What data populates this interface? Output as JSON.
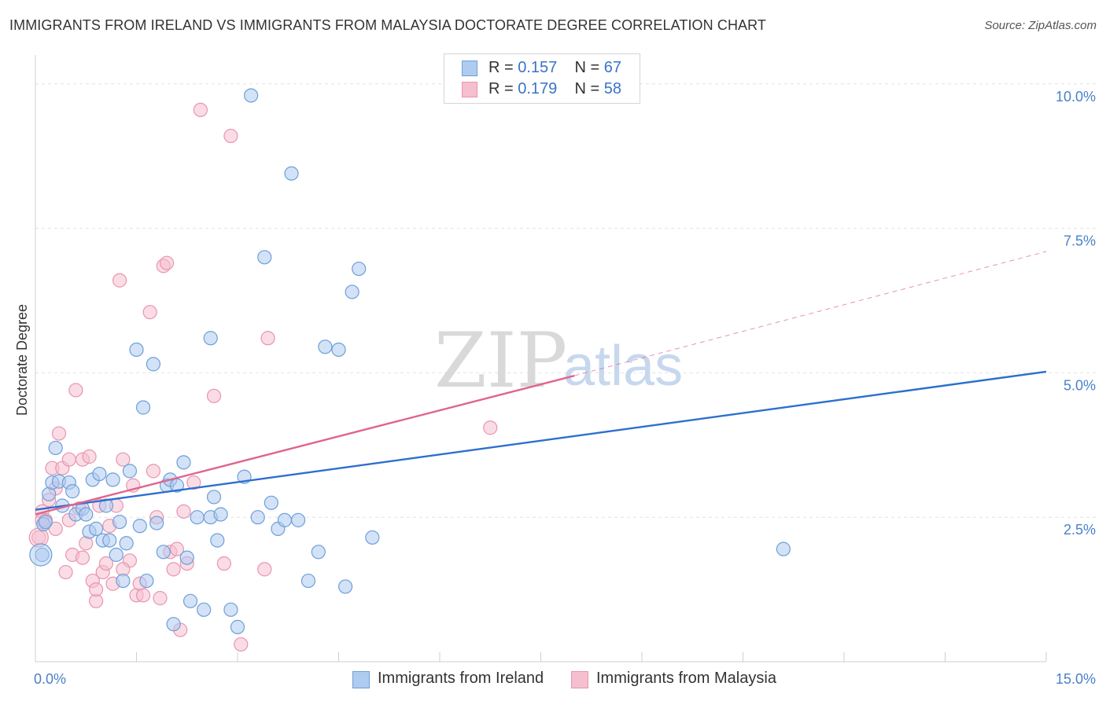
{
  "title": "IMMIGRANTS FROM IRELAND VS IMMIGRANTS FROM MALAYSIA DOCTORATE DEGREE CORRELATION CHART",
  "source": "Source: ZipAtlas.com",
  "watermark": {
    "zip": "ZIP",
    "atlas": "atlas"
  },
  "colors": {
    "ireland_fill": "#aecbf0",
    "ireland_stroke": "#6d9fd8",
    "ireland_line": "#2d6fcc",
    "malaysia_fill": "#f5bfd0",
    "malaysia_stroke": "#e994b0",
    "malaysia_line": "#e0648f",
    "grid": "#e2e2e2",
    "tick_text": "#4a80c8"
  },
  "legend": {
    "rows": [
      {
        "r_label": "R = ",
        "r_value": "0.157",
        "n_label": "N = ",
        "n_value": "67"
      },
      {
        "r_label": "R = ",
        "r_value": "0.179",
        "n_label": "N = ",
        "n_value": "58"
      }
    ]
  },
  "bottom_legend": [
    "Immigrants from Ireland",
    "Immigrants from Malaysia"
  ],
  "chart_data": {
    "type": "scatter",
    "title": "IMMIGRANTS FROM IRELAND VS IMMIGRANTS FROM MALAYSIA DOCTORATE DEGREE CORRELATION CHART",
    "xlabel": "",
    "ylabel": "Doctorate Degree",
    "xlim": [
      0,
      15
    ],
    "ylim": [
      0,
      10.5
    ],
    "x_tick_labels": [
      "0.0%",
      "15.0%"
    ],
    "y_ticks": [
      2.5,
      5.0,
      7.5,
      10.0
    ],
    "y_tick_labels": [
      "2.5%",
      "5.0%",
      "7.5%",
      "10.0%"
    ],
    "grid": true,
    "series": [
      {
        "name": "Immigrants from Ireland",
        "r": 0.157,
        "n": 67,
        "trend": {
          "x": [
            0,
            15
          ],
          "y": [
            2.63,
            5.02
          ],
          "dashed_extension": false
        },
        "points": [
          [
            0.1,
            1.85
          ],
          [
            0.12,
            2.38
          ],
          [
            0.15,
            2.42
          ],
          [
            0.2,
            2.9
          ],
          [
            0.25,
            3.1
          ],
          [
            0.3,
            3.7
          ],
          [
            0.35,
            3.12
          ],
          [
            0.4,
            2.7
          ],
          [
            0.5,
            3.1
          ],
          [
            0.55,
            2.95
          ],
          [
            0.6,
            2.55
          ],
          [
            0.7,
            2.65
          ],
          [
            0.75,
            2.55
          ],
          [
            0.8,
            2.25
          ],
          [
            0.85,
            3.15
          ],
          [
            0.9,
            2.3
          ],
          [
            0.95,
            3.25
          ],
          [
            1.0,
            2.1
          ],
          [
            1.05,
            2.7
          ],
          [
            1.1,
            2.1
          ],
          [
            1.15,
            3.15
          ],
          [
            1.2,
            1.85
          ],
          [
            1.25,
            2.42
          ],
          [
            1.3,
            1.4
          ],
          [
            1.35,
            2.05
          ],
          [
            1.4,
            3.3
          ],
          [
            1.5,
            5.4
          ],
          [
            1.55,
            2.35
          ],
          [
            1.6,
            4.4
          ],
          [
            1.65,
            1.4
          ],
          [
            1.75,
            5.15
          ],
          [
            1.8,
            2.4
          ],
          [
            1.9,
            1.9
          ],
          [
            1.95,
            3.05
          ],
          [
            2.0,
            3.15
          ],
          [
            2.05,
            0.65
          ],
          [
            2.1,
            3.05
          ],
          [
            2.2,
            3.45
          ],
          [
            2.25,
            1.8
          ],
          [
            2.3,
            1.05
          ],
          [
            2.4,
            2.5
          ],
          [
            2.5,
            0.9
          ],
          [
            2.6,
            2.5
          ],
          [
            2.6,
            5.6
          ],
          [
            2.65,
            2.85
          ],
          [
            2.7,
            2.1
          ],
          [
            2.75,
            2.55
          ],
          [
            2.9,
            0.9
          ],
          [
            3.0,
            0.6
          ],
          [
            3.1,
            3.2
          ],
          [
            3.2,
            9.8
          ],
          [
            3.3,
            2.5
          ],
          [
            3.4,
            7.0
          ],
          [
            3.5,
            2.75
          ],
          [
            3.6,
            2.3
          ],
          [
            3.7,
            2.45
          ],
          [
            3.8,
            8.45
          ],
          [
            3.9,
            2.45
          ],
          [
            4.05,
            1.4
          ],
          [
            4.2,
            1.9
          ],
          [
            4.3,
            5.45
          ],
          [
            4.5,
            5.4
          ],
          [
            4.6,
            1.3
          ],
          [
            4.7,
            6.4
          ],
          [
            4.8,
            6.8
          ],
          [
            5.0,
            2.15
          ],
          [
            11.1,
            1.95
          ]
        ]
      },
      {
        "name": "Immigrants from Malaysia",
        "r": 0.179,
        "n": 58,
        "trend": {
          "x": [
            0,
            8.0
          ],
          "y": [
            2.55,
            4.95
          ],
          "dashed_extension": {
            "x": [
              8.0,
              15
            ],
            "y": [
              4.95,
              7.1
            ]
          }
        },
        "points": [
          [
            0.05,
            2.15
          ],
          [
            0.1,
            2.6
          ],
          [
            0.15,
            2.45
          ],
          [
            0.2,
            2.8
          ],
          [
            0.25,
            3.35
          ],
          [
            0.3,
            3.0
          ],
          [
            0.35,
            3.95
          ],
          [
            0.4,
            3.35
          ],
          [
            0.45,
            1.55
          ],
          [
            0.5,
            3.5
          ],
          [
            0.55,
            1.85
          ],
          [
            0.6,
            4.7
          ],
          [
            0.65,
            2.65
          ],
          [
            0.7,
            3.5
          ],
          [
            0.75,
            2.05
          ],
          [
            0.8,
            3.55
          ],
          [
            0.85,
            1.4
          ],
          [
            0.9,
            1.05
          ],
          [
            0.95,
            2.7
          ],
          [
            1.0,
            1.55
          ],
          [
            1.05,
            1.7
          ],
          [
            1.1,
            2.35
          ],
          [
            1.15,
            1.35
          ],
          [
            1.2,
            2.7
          ],
          [
            1.25,
            6.6
          ],
          [
            1.3,
            3.5
          ],
          [
            1.4,
            1.75
          ],
          [
            1.45,
            3.05
          ],
          [
            1.5,
            1.15
          ],
          [
            1.55,
            1.35
          ],
          [
            1.6,
            1.15
          ],
          [
            1.7,
            6.05
          ],
          [
            1.75,
            3.3
          ],
          [
            1.8,
            2.5
          ],
          [
            1.85,
            1.1
          ],
          [
            1.9,
            6.85
          ],
          [
            1.95,
            6.9
          ],
          [
            2.0,
            1.9
          ],
          [
            2.05,
            1.6
          ],
          [
            2.1,
            1.95
          ],
          [
            2.15,
            0.55
          ],
          [
            2.2,
            2.6
          ],
          [
            2.25,
            1.7
          ],
          [
            2.35,
            3.1
          ],
          [
            2.45,
            9.55
          ],
          [
            2.65,
            4.6
          ],
          [
            2.8,
            1.7
          ],
          [
            2.9,
            9.1
          ],
          [
            3.05,
            0.3
          ],
          [
            3.4,
            1.6
          ],
          [
            3.45,
            5.6
          ],
          [
            6.75,
            4.05
          ],
          [
            0.1,
            2.45
          ],
          [
            0.3,
            2.3
          ],
          [
            0.5,
            2.45
          ],
          [
            0.7,
            1.8
          ],
          [
            0.9,
            1.25
          ],
          [
            1.3,
            1.6
          ]
        ]
      }
    ]
  }
}
